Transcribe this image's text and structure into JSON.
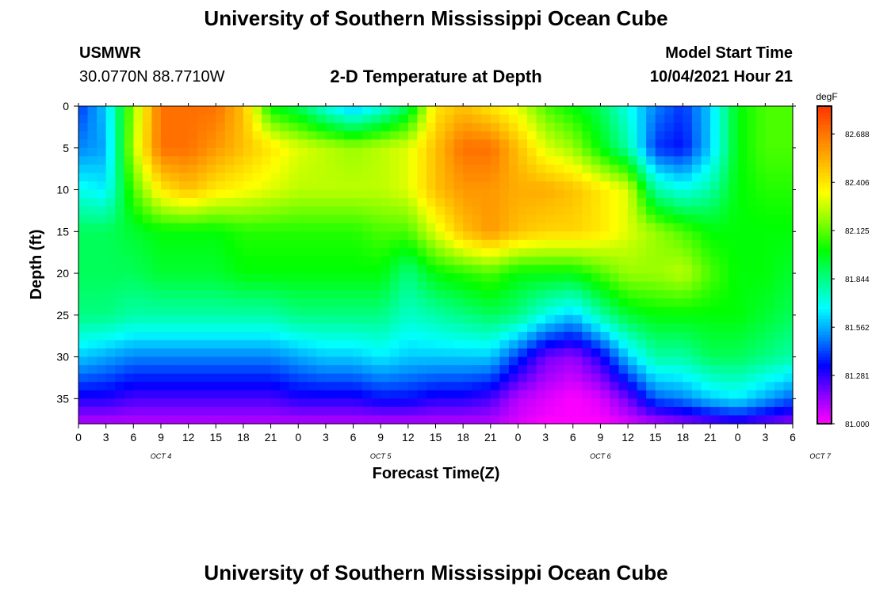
{
  "page": {
    "title_top": "University of Southern Mississippi Ocean Cube",
    "title_bottom": "University of Southern Mississippi Ocean Cube",
    "station": "USMWR",
    "location": "30.0770N  88.7710W",
    "subtitle": "2-D Temperature at Depth",
    "model_start_label": "Model Start Time",
    "model_start_value": "10/04/2021 Hour 21"
  },
  "chart_data": {
    "type": "heatmap",
    "title": "2-D Temperature at Depth",
    "xlabel": "Forecast Time(Z)",
    "ylabel": "Depth (ft)",
    "x_tick_labels": [
      "0",
      "3",
      "6",
      "9",
      "12",
      "15",
      "18",
      "21",
      "0",
      "3",
      "6",
      "9",
      "12",
      "15",
      "18",
      "21",
      "0",
      "3",
      "6",
      "9",
      "12",
      "15",
      "18",
      "21",
      "0",
      "3",
      "6"
    ],
    "date_labels": [
      "OCT 4",
      "OCT 5",
      "OCT 6",
      "OCT 7"
    ],
    "date_label_hours": [
      9,
      33,
      57,
      81
    ],
    "xlim_hours": [
      0,
      78
    ],
    "y_ticks": [
      0,
      5,
      10,
      15,
      20,
      25,
      30,
      35
    ],
    "ylim": [
      0,
      38
    ],
    "colorbar": {
      "unit": "degF",
      "ticks": [
        82.688,
        82.406,
        82.125,
        81.844,
        81.562,
        81.281,
        81.0
      ],
      "min": 81.0,
      "max": 82.85,
      "colors": [
        "#ff00ff",
        "#8800ff",
        "#0000ff",
        "#0088ff",
        "#00ffff",
        "#00ff88",
        "#00ff00",
        "#88ff00",
        "#ffff00",
        "#ffbb00",
        "#ff7700",
        "#ff3300"
      ]
    },
    "depth_profiles": {
      "depth_ft": [
        0,
        5,
        10,
        15,
        20,
        25,
        30,
        35,
        38
      ],
      "time_hours": [
        0,
        3,
        6,
        9,
        12,
        15,
        18,
        21,
        24,
        27,
        30,
        33,
        36,
        39,
        42,
        45,
        48,
        51,
        54,
        57,
        60,
        63,
        66,
        69,
        72,
        75,
        78
      ],
      "values": [
        [
          81.4,
          81.5,
          81.7,
          81.9,
          81.9,
          81.85,
          81.6,
          81.3,
          81.1
        ],
        [
          81.6,
          81.55,
          81.65,
          81.9,
          81.9,
          81.85,
          81.55,
          81.3,
          81.1
        ],
        [
          82.2,
          82.25,
          82.1,
          81.95,
          81.9,
          81.8,
          81.5,
          81.25,
          81.1
        ],
        [
          82.7,
          82.7,
          82.4,
          82.0,
          81.95,
          81.8,
          81.5,
          81.25,
          81.1
        ],
        [
          82.7,
          82.7,
          82.5,
          82.0,
          81.95,
          81.8,
          81.5,
          81.25,
          81.1
        ],
        [
          82.7,
          82.6,
          82.4,
          82.0,
          81.95,
          81.8,
          81.5,
          81.25,
          81.1
        ],
        [
          82.5,
          82.5,
          82.35,
          82.05,
          82.0,
          81.8,
          81.5,
          81.25,
          81.1
        ],
        [
          82.0,
          82.4,
          82.3,
          82.05,
          82.0,
          81.8,
          81.5,
          81.25,
          81.1
        ],
        [
          81.9,
          82.3,
          82.25,
          82.05,
          82.0,
          81.85,
          81.55,
          81.3,
          81.1
        ],
        [
          81.7,
          82.25,
          82.25,
          82.05,
          82.0,
          81.85,
          81.6,
          81.3,
          81.1
        ],
        [
          81.56,
          82.2,
          82.25,
          82.05,
          82.0,
          81.85,
          81.6,
          81.3,
          81.1
        ],
        [
          81.7,
          82.25,
          82.25,
          82.1,
          82.0,
          81.85,
          81.65,
          81.35,
          81.1
        ],
        [
          81.9,
          82.3,
          82.3,
          82.1,
          81.85,
          81.75,
          81.6,
          81.35,
          81.1
        ],
        [
          82.4,
          82.5,
          82.5,
          82.3,
          82.0,
          81.8,
          81.6,
          81.3,
          81.1
        ],
        [
          82.5,
          82.7,
          82.6,
          82.5,
          82.05,
          81.85,
          81.6,
          81.3,
          81.1
        ],
        [
          82.4,
          82.7,
          82.6,
          82.6,
          82.1,
          81.9,
          81.6,
          81.25,
          81.1
        ],
        [
          82.3,
          82.5,
          82.55,
          82.5,
          82.0,
          81.85,
          81.4,
          81.1,
          81.05
        ],
        [
          82.1,
          82.3,
          82.55,
          82.45,
          82.0,
          81.7,
          81.2,
          81.05,
          81.0
        ],
        [
          82.0,
          82.2,
          82.5,
          82.45,
          82.0,
          81.6,
          81.15,
          81.0,
          81.0
        ],
        [
          81.9,
          82.0,
          82.4,
          82.4,
          82.1,
          81.8,
          81.3,
          81.05,
          81.0
        ],
        [
          81.7,
          81.8,
          82.3,
          82.3,
          82.2,
          81.95,
          81.6,
          81.2,
          81.05
        ],
        [
          81.5,
          81.4,
          81.8,
          82.2,
          82.2,
          82.0,
          81.8,
          81.45,
          81.1
        ],
        [
          81.4,
          81.35,
          81.7,
          82.1,
          82.25,
          82.0,
          81.8,
          81.5,
          81.15
        ],
        [
          81.6,
          81.6,
          81.8,
          82.0,
          82.1,
          82.0,
          81.9,
          81.6,
          81.2
        ],
        [
          82.0,
          82.0,
          82.0,
          82.0,
          82.0,
          82.0,
          81.9,
          81.65,
          81.25
        ],
        [
          82.1,
          82.1,
          82.05,
          82.0,
          82.0,
          81.95,
          81.85,
          81.55,
          81.2
        ],
        [
          82.1,
          82.1,
          82.05,
          82.0,
          81.95,
          81.9,
          81.8,
          81.45,
          81.15
        ]
      ]
    }
  }
}
